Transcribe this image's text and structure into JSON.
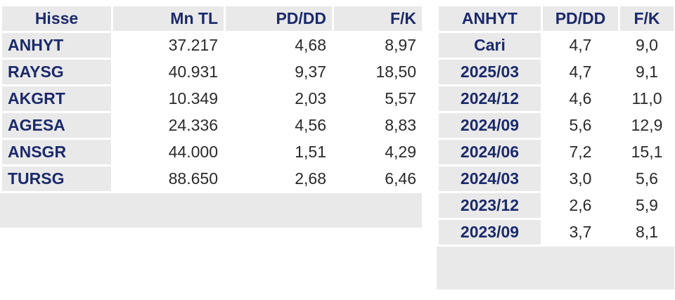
{
  "left_table": {
    "headers": [
      "Hisse",
      "Mn TL",
      "PD/DD",
      "F/K"
    ],
    "rows": [
      [
        "ANHYT",
        "37.217",
        "4,68",
        "8,97"
      ],
      [
        "RAYSG",
        "40.931",
        "9,37",
        "18,50"
      ],
      [
        "AKGRT",
        "10.349",
        "2,03",
        "5,57"
      ],
      [
        "AGESA",
        "24.336",
        "4,56",
        "8,83"
      ],
      [
        "ANSGR",
        "44.000",
        "1,51",
        "4,29"
      ],
      [
        "TURSG",
        "88.650",
        "2,68",
        "6,46"
      ]
    ]
  },
  "right_table": {
    "headers": [
      "ANHYT",
      "PD/DD",
      "F/K"
    ],
    "rows": [
      [
        "Cari",
        "4,7",
        "9,0"
      ],
      [
        "2025/03",
        "4,7",
        "9,1"
      ],
      [
        "2024/12",
        "4,6",
        "11,0"
      ],
      [
        "2024/09",
        "5,6",
        "12,9"
      ],
      [
        "2024/06",
        "7,2",
        "15,1"
      ],
      [
        "2024/03",
        "3,0",
        "5,6"
      ],
      [
        "2023/12",
        "2,6",
        "5,9"
      ],
      [
        "2023/09",
        "3,7",
        "8,1"
      ]
    ]
  },
  "colors": {
    "header_text": "#1b2a6b",
    "header_bg": "#e9e9e9",
    "cell_text": "#2a2a2a"
  }
}
